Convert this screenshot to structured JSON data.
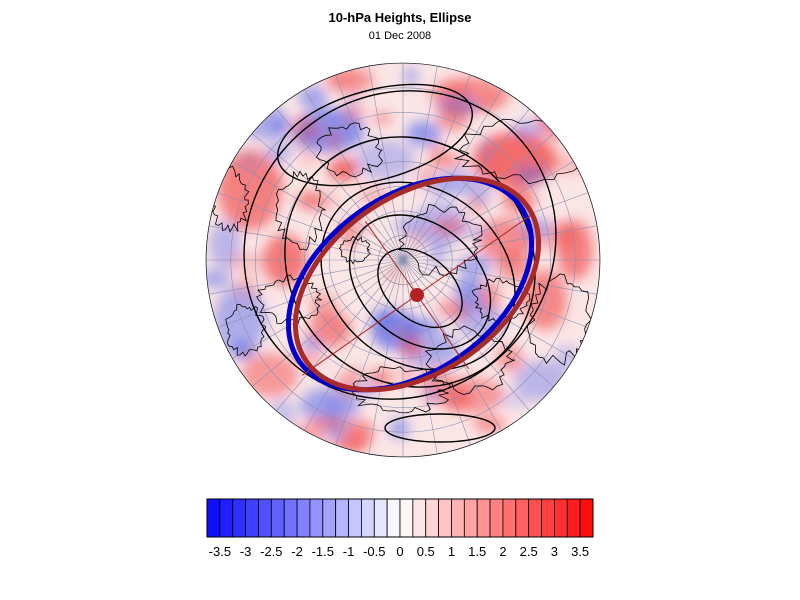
{
  "title": "10-hPa Heights, Ellipse",
  "subtitle": "01 Dec 2008",
  "map": {
    "projection": "north-polar-stereographic",
    "field": "10-hPa height anomaly (shaded) with height contours",
    "fitted_ellipse_color": "#a52a2a",
    "contour_highlight_color": "#0000cc",
    "center_marker_color": "#b22222"
  },
  "colorbar": {
    "levels": [
      -3.75,
      -3.5,
      -3.25,
      -3,
      -2.75,
      -2.5,
      -2.25,
      -2,
      -1.75,
      -1.5,
      -1.25,
      -1,
      -0.75,
      -0.5,
      -0.25,
      0,
      0.25,
      0.5,
      0.75,
      1,
      1.25,
      1.5,
      1.75,
      2,
      2.25,
      2.5,
      2.75,
      3,
      3.25,
      3.5,
      3.75
    ],
    "tick_labels": [
      "-3.5",
      "-3",
      "-2.5",
      "-2",
      "-1.5",
      "-1",
      "-0.5",
      "0",
      "0.5",
      "1",
      "1.5",
      "2",
      "2.5",
      "3",
      "3.5"
    ],
    "neg_color": "#0000ff",
    "pos_color": "#ff0000"
  }
}
